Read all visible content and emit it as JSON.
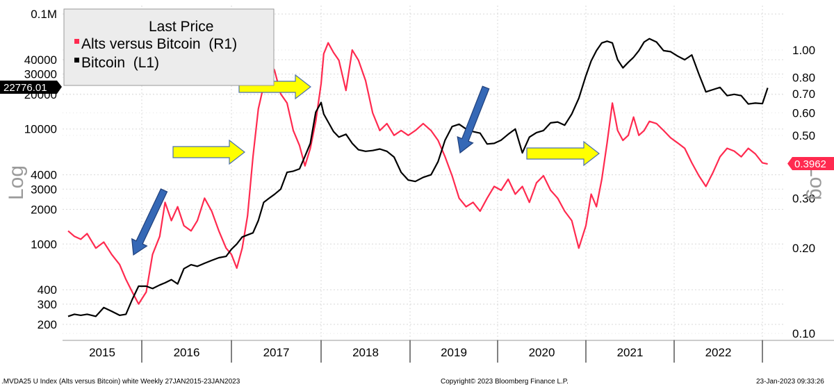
{
  "chart_data": {
    "type": "line",
    "scale": "log",
    "left_axis": {
      "title": "Log",
      "ticks": [
        "0.1M",
        "40000",
        "30000",
        "20000",
        "10000",
        "4000",
        "3000",
        "2000",
        "1000",
        "400",
        "300",
        "200"
      ],
      "tick_values": [
        100000,
        40000,
        30000,
        20000,
        10000,
        4000,
        3000,
        2000,
        1000,
        400,
        300,
        200
      ]
    },
    "right_axis": {
      "title": "Log",
      "ticks": [
        "1.00",
        "0.80",
        "0.70",
        "0.60",
        "0.50",
        "0.30",
        "0.20",
        "0.10"
      ],
      "tick_values": [
        1.0,
        0.8,
        0.7,
        0.6,
        0.5,
        0.3,
        0.2,
        0.1
      ]
    },
    "x_labels": [
      "2015",
      "2016",
      "2017",
      "2018",
      "2019",
      "2020",
      "2021",
      "2022"
    ],
    "legend": {
      "title": "Last Price",
      "items": [
        "Alts versus Bitcoin  (R1)",
        "Bitcoin  (L1)"
      ],
      "placement": "top-left"
    },
    "series": [
      {
        "name": "Alts versus Bitcoin  (R1)",
        "axis": "right",
        "color": "#ff2a4f",
        "last_value_label": "0.3962",
        "x": [
          2015.07,
          2015.15,
          2015.23,
          2015.31,
          2015.42,
          2015.52,
          2015.62,
          2015.72,
          2015.8,
          2015.88,
          2015.96,
          2016.05,
          2016.12,
          2016.2,
          2016.26,
          2016.33,
          2016.4,
          2016.47,
          2016.55,
          2016.62,
          2016.7,
          2016.78,
          2016.86,
          2016.94,
          2017.0,
          2017.06,
          2017.12,
          2017.18,
          2017.24,
          2017.3,
          2017.36,
          2017.42,
          2017.48,
          2017.55,
          2017.62,
          2017.69,
          2017.76,
          2017.82,
          2017.88,
          2017.94,
          2018.0,
          2018.03,
          2018.08,
          2018.14,
          2018.2,
          2018.28,
          2018.35,
          2018.42,
          2018.5,
          2018.58,
          2018.66,
          2018.74,
          2018.82,
          2018.9,
          2018.98,
          2019.06,
          2019.15,
          2019.24,
          2019.32,
          2019.4,
          2019.48,
          2019.56,
          2019.64,
          2019.72,
          2019.8,
          2019.88,
          2019.96,
          2020.04,
          2020.12,
          2020.2,
          2020.28,
          2020.36,
          2020.44,
          2020.52,
          2020.6,
          2020.68,
          2020.76,
          2020.84,
          2020.92,
          2021.0,
          2021.06,
          2021.12,
          2021.18,
          2021.24,
          2021.3,
          2021.36,
          2021.42,
          2021.48,
          2021.54,
          2021.6,
          2021.66,
          2021.72,
          2021.8,
          2021.88,
          2021.96,
          2022.04,
          2022.12,
          2022.2,
          2022.28,
          2022.36,
          2022.44,
          2022.52,
          2022.6,
          2022.68,
          2022.76,
          2022.84,
          2022.92,
          2023.0,
          2023.06
        ],
        "values": [
          0.23,
          0.22,
          0.215,
          0.225,
          0.2,
          0.21,
          0.19,
          0.175,
          0.155,
          0.14,
          0.127,
          0.14,
          0.19,
          0.22,
          0.29,
          0.25,
          0.28,
          0.24,
          0.23,
          0.25,
          0.3,
          0.27,
          0.23,
          0.2,
          0.19,
          0.17,
          0.2,
          0.26,
          0.42,
          0.62,
          0.75,
          0.9,
          0.85,
          0.7,
          0.65,
          0.52,
          0.46,
          0.39,
          0.45,
          0.56,
          0.76,
          0.97,
          1.06,
          0.98,
          0.92,
          0.72,
          1.0,
          0.92,
          0.78,
          0.6,
          0.52,
          0.55,
          0.5,
          0.52,
          0.5,
          0.52,
          0.55,
          0.52,
          0.48,
          0.42,
          0.36,
          0.3,
          0.28,
          0.29,
          0.27,
          0.3,
          0.33,
          0.32,
          0.35,
          0.31,
          0.33,
          0.29,
          0.34,
          0.36,
          0.32,
          0.3,
          0.27,
          0.25,
          0.2,
          0.24,
          0.31,
          0.28,
          0.35,
          0.47,
          0.65,
          0.52,
          0.48,
          0.5,
          0.58,
          0.5,
          0.52,
          0.56,
          0.55,
          0.52,
          0.49,
          0.47,
          0.45,
          0.4,
          0.36,
          0.33,
          0.37,
          0.42,
          0.45,
          0.44,
          0.42,
          0.45,
          0.43,
          0.4,
          0.396
        ]
      },
      {
        "name": "Bitcoin  (L1)",
        "axis": "left",
        "color": "#000000",
        "last_value_label": "22776.01",
        "x": [
          2015.07,
          2015.15,
          2015.23,
          2015.31,
          2015.42,
          2015.52,
          2015.62,
          2015.72,
          2015.8,
          2015.88,
          2015.96,
          2016.05,
          2016.12,
          2016.2,
          2016.26,
          2016.33,
          2016.4,
          2016.47,
          2016.55,
          2016.62,
          2016.7,
          2016.78,
          2016.86,
          2016.94,
          2017.0,
          2017.06,
          2017.12,
          2017.18,
          2017.24,
          2017.3,
          2017.36,
          2017.42,
          2017.48,
          2017.55,
          2017.62,
          2017.69,
          2017.76,
          2017.82,
          2017.88,
          2017.94,
          2018.0,
          2018.03,
          2018.08,
          2018.14,
          2018.2,
          2018.28,
          2018.35,
          2018.42,
          2018.5,
          2018.58,
          2018.66,
          2018.74,
          2018.82,
          2018.9,
          2018.98,
          2019.06,
          2019.15,
          2019.24,
          2019.32,
          2019.4,
          2019.48,
          2019.56,
          2019.64,
          2019.72,
          2019.8,
          2019.88,
          2019.96,
          2020.04,
          2020.12,
          2020.2,
          2020.28,
          2020.36,
          2020.44,
          2020.52,
          2020.6,
          2020.68,
          2020.76,
          2020.84,
          2020.92,
          2021.0,
          2021.06,
          2021.12,
          2021.18,
          2021.24,
          2021.3,
          2021.36,
          2021.42,
          2021.48,
          2021.54,
          2021.6,
          2021.66,
          2021.72,
          2021.8,
          2021.88,
          2021.96,
          2022.04,
          2022.12,
          2022.2,
          2022.28,
          2022.36,
          2022.44,
          2022.52,
          2022.6,
          2022.68,
          2022.76,
          2022.84,
          2022.92,
          2023.0,
          2023.06
        ],
        "values": [
          235,
          245,
          240,
          245,
          235,
          280,
          260,
          240,
          245,
          330,
          430,
          430,
          410,
          440,
          460,
          490,
          450,
          610,
          660,
          640,
          680,
          720,
          760,
          780,
          900,
          1000,
          1150,
          1200,
          1250,
          1600,
          2300,
          2500,
          2700,
          3000,
          4200,
          4300,
          4500,
          5800,
          7500,
          14000,
          17000,
          13500,
          11500,
          9500,
          8500,
          9000,
          7500,
          6600,
          6400,
          6500,
          6700,
          6400,
          5700,
          4200,
          3600,
          3500,
          3800,
          4000,
          5200,
          8000,
          10500,
          11000,
          10000,
          9500,
          9200,
          7400,
          7500,
          8000,
          9000,
          10000,
          6200,
          8500,
          9300,
          9700,
          11300,
          11500,
          10800,
          13500,
          18500,
          29000,
          39000,
          48000,
          56000,
          58000,
          56000,
          40000,
          34000,
          38000,
          42000,
          48000,
          57000,
          61000,
          57000,
          48000,
          47000,
          43000,
          40000,
          44000,
          30000,
          21000,
          22000,
          23000,
          19500,
          20000,
          19500,
          16500,
          16800,
          16600,
          22776
        ]
      }
    ],
    "annotations": [
      {
        "type": "arrow",
        "color": "#3568b6",
        "direction": "down-left"
      },
      {
        "type": "arrow",
        "color": "#ffff00",
        "direction": "right"
      },
      {
        "type": "arrow",
        "color": "#ffff00",
        "direction": "right"
      },
      {
        "type": "arrow",
        "color": "#3568b6",
        "direction": "down-left"
      },
      {
        "type": "arrow",
        "color": "#ffff00",
        "direction": "right"
      }
    ],
    "grid": true
  },
  "footer": {
    "left": ".MVDA25 U Index (Alts versus Bitcoin) white  Weekly 27JAN2015-23JAN2023",
    "center": "Copyright© 2023 Bloomberg Finance L.P.",
    "right": "23-Jan-2023 09:33:26"
  }
}
